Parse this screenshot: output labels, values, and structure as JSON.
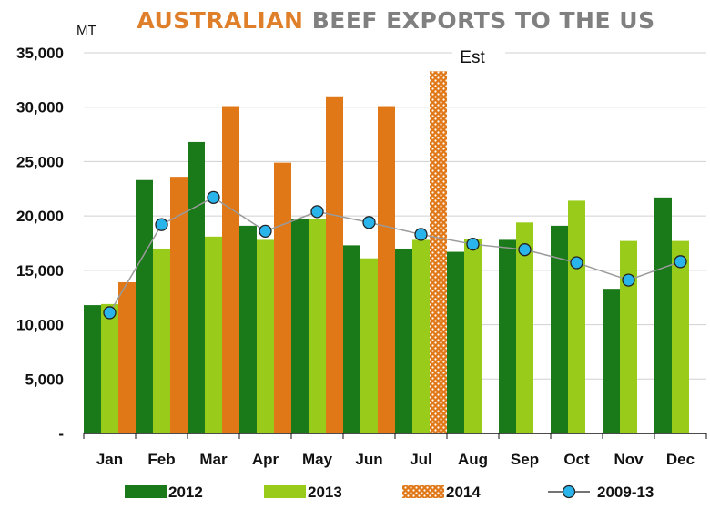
{
  "title_part1": "AUSTRALIAN",
  "title_part2": "BEEF EXPORTS TO THE US",
  "chart_data": {
    "type": "bar",
    "title": "AUSTRALIAN BEEF EXPORTS TO THE US",
    "ylabel": "MT",
    "ylim": [
      0,
      35000
    ],
    "yticks": [
      0,
      5000,
      10000,
      15000,
      20000,
      25000,
      30000,
      35000
    ],
    "ytick_labels": [
      "-",
      "5,000",
      "10,000",
      "15,000",
      "20,000",
      "25,000",
      "30,000",
      "35,000"
    ],
    "grid": true,
    "legend_position": "bottom",
    "annotation": "Est",
    "categories": [
      "Jan",
      "Feb",
      "Mar",
      "Apr",
      "May",
      "Jun",
      "Jul",
      "Aug",
      "Sep",
      "Oct",
      "Nov",
      "Dec"
    ],
    "series": [
      {
        "name": "2012",
        "type": "bar",
        "color": "#1a7a1a",
        "values": [
          11800,
          23300,
          26800,
          19100,
          19700,
          17300,
          17000,
          16700,
          17800,
          19100,
          13300,
          21700
        ]
      },
      {
        "name": "2013",
        "type": "bar",
        "color": "#99cc1a",
        "values": [
          11900,
          17000,
          18100,
          17800,
          19700,
          16100,
          17800,
          17900,
          19400,
          21400,
          17700,
          17700
        ]
      },
      {
        "name": "2014",
        "type": "bar",
        "color": "#e07818",
        "values": [
          13900,
          23600,
          30100,
          24900,
          31000,
          30100,
          33300,
          null,
          null,
          null,
          null,
          null
        ],
        "estimated": [
          false,
          false,
          false,
          false,
          false,
          false,
          true,
          false,
          false,
          false,
          false,
          false
        ]
      },
      {
        "name": "2009-13",
        "type": "line",
        "color": "#29b5ec",
        "values": [
          11100,
          19200,
          21700,
          18600,
          20400,
          19400,
          18300,
          17400,
          16900,
          15700,
          14100,
          15800
        ]
      }
    ]
  }
}
